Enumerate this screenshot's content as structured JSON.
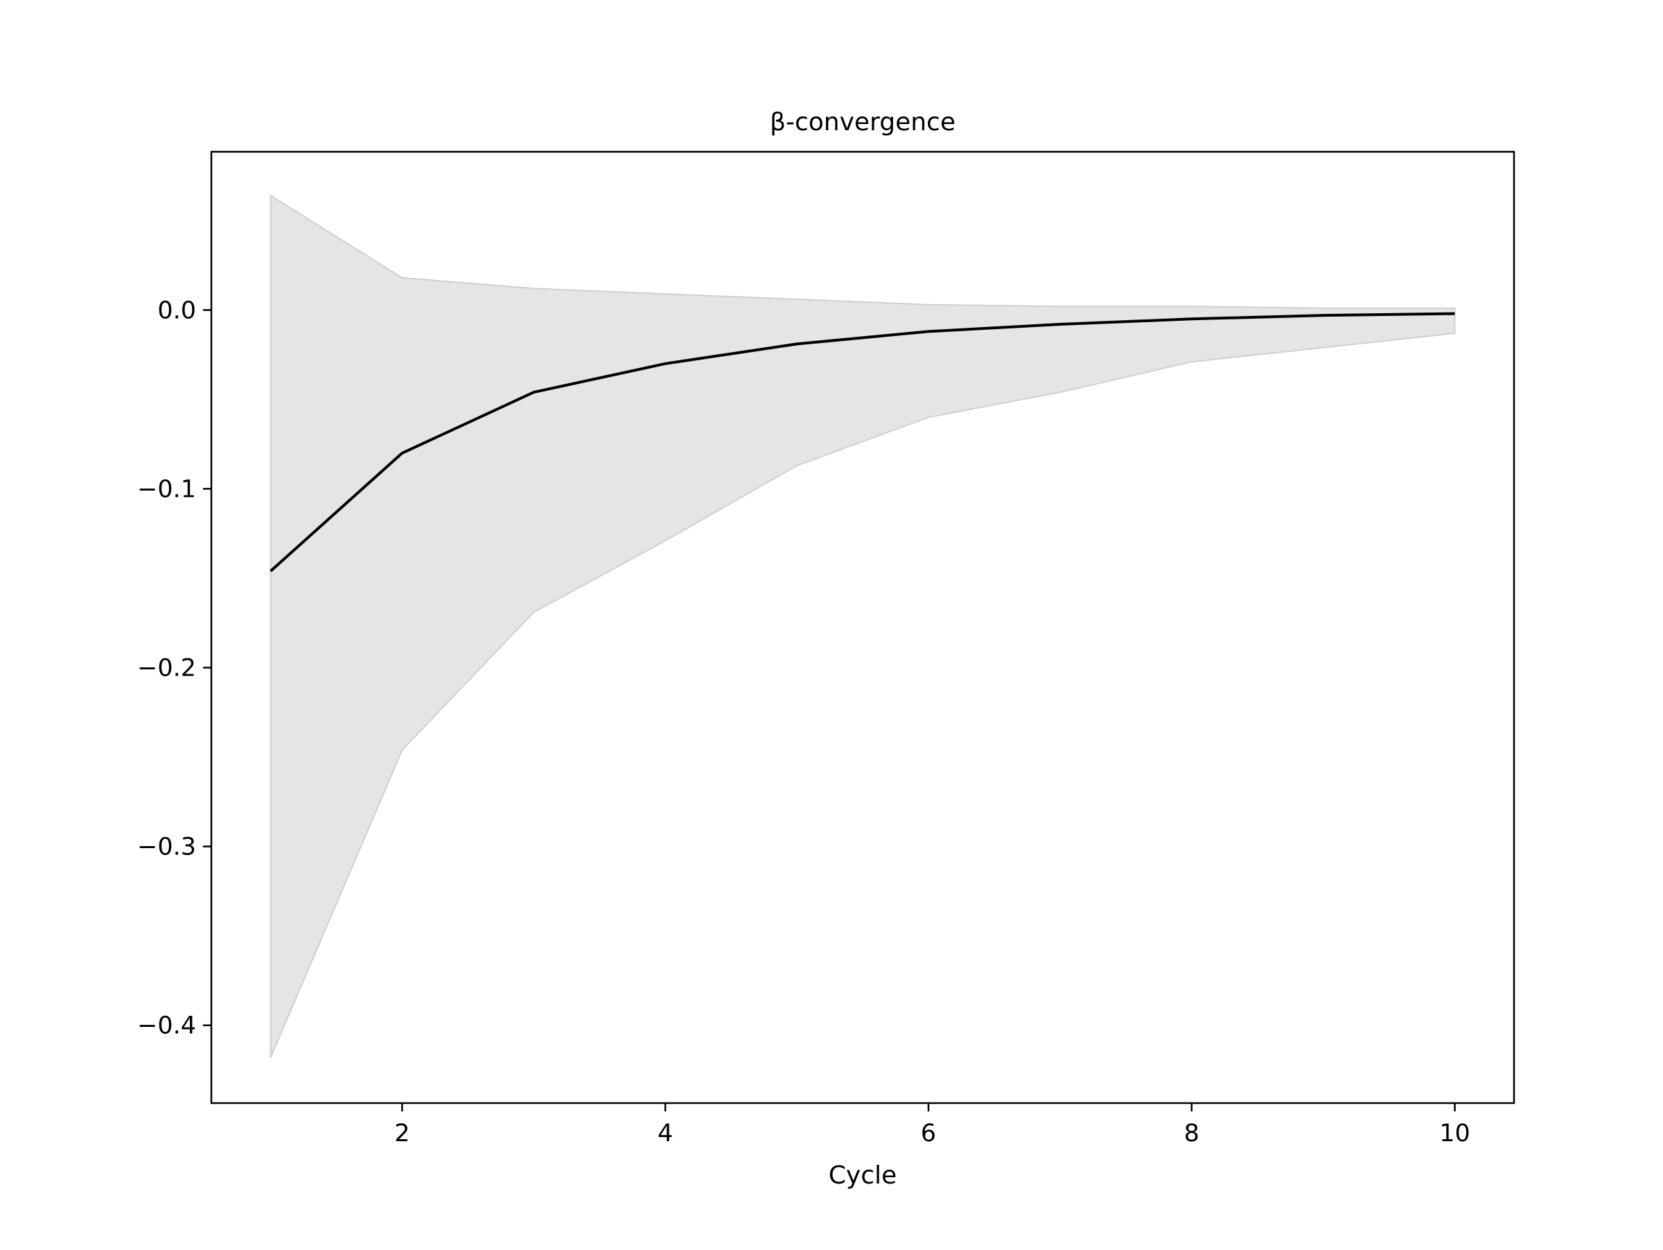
{
  "chart_data": {
    "type": "line",
    "title": "β-convergence",
    "xlabel": "Cycle",
    "ylabel": "",
    "xlim": [
      0.55,
      10.45
    ],
    "ylim": [
      -0.4435,
      0.0885
    ],
    "x_ticks": [
      2,
      4,
      6,
      8,
      10
    ],
    "x_tick_labels": [
      "2",
      "4",
      "6",
      "8",
      "10"
    ],
    "y_ticks": [
      0.0,
      -0.1,
      -0.2,
      -0.3,
      -0.4
    ],
    "y_tick_labels": [
      "0.0",
      "−0.1",
      "−0.2",
      "−0.3",
      "−0.4"
    ],
    "grid": false,
    "legend": "none",
    "x": [
      1,
      2,
      3,
      4,
      5,
      6,
      7,
      8,
      9,
      10
    ],
    "series": [
      {
        "values": [
          -0.146,
          -0.08,
          -0.046,
          -0.03,
          -0.019,
          -0.012,
          -0.008,
          -0.005,
          -0.003,
          -0.002
        ],
        "color": "#000000"
      }
    ],
    "band": {
      "upper": [
        0.064,
        0.018,
        0.012,
        0.009,
        0.006,
        0.003,
        0.002,
        0.002,
        0.001,
        0.001
      ],
      "lower": [
        -0.418,
        -0.246,
        -0.169,
        -0.129,
        -0.087,
        -0.06,
        -0.046,
        -0.029,
        -0.021,
        -0.013
      ],
      "color": "#e5e5e5",
      "edge_color": "#cfcfcf"
    }
  }
}
